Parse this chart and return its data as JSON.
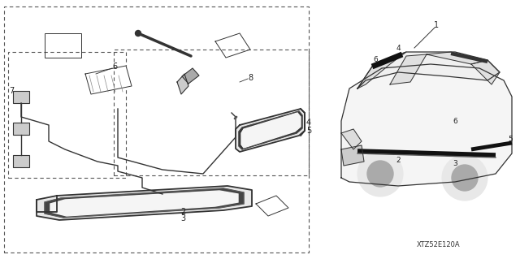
{
  "bg_color": "#ffffff",
  "title_code": "XTZ52E120A",
  "line_color": "#333333",
  "dark_color": "#111111"
}
